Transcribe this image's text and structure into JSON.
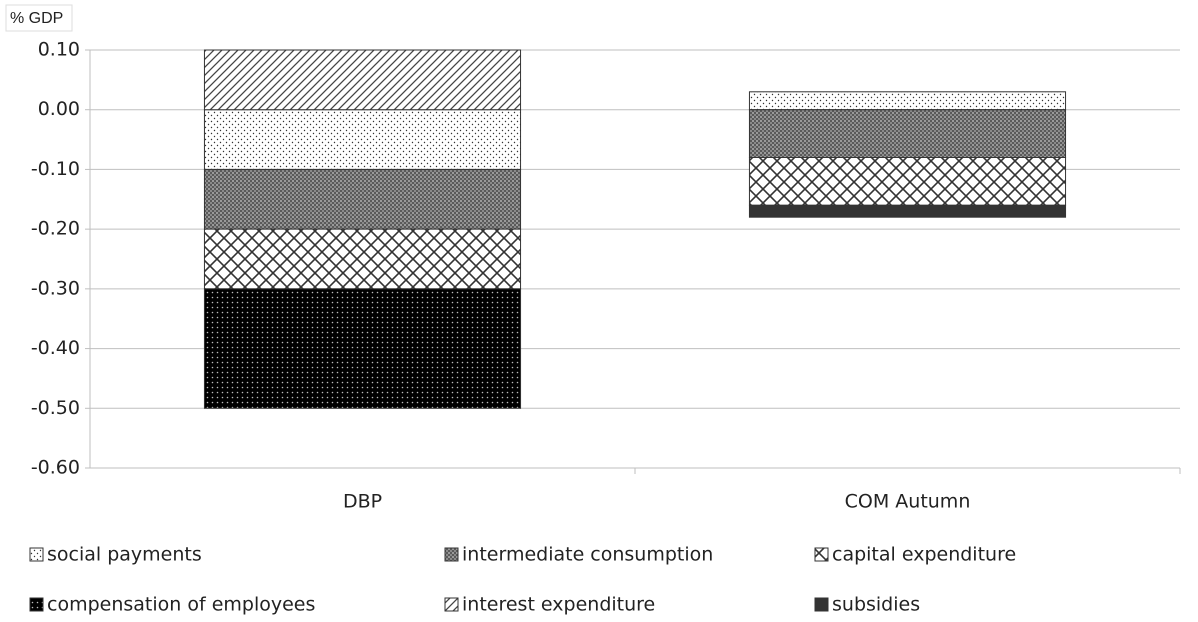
{
  "chart_data": {
    "type": "stacked_bar",
    "y_label": "% GDP",
    "categories": [
      "DBP",
      "COM Autumn"
    ],
    "series": [
      {
        "name": "social payments",
        "color": "#f2f2f2",
        "values": [
          -0.1,
          0.03
        ]
      },
      {
        "name": "intermediate consumption",
        "color": "#777777",
        "values": [
          -0.1,
          -0.08
        ]
      },
      {
        "name": "capital expenditure",
        "color": "#dddddd",
        "values": [
          -0.1,
          -0.08
        ]
      },
      {
        "name": "compensation of employees",
        "color": "#111111",
        "values": [
          -0.2,
          0
        ]
      },
      {
        "name": "interest expenditure",
        "color": "#cccccc",
        "values": [
          0.1,
          0
        ]
      },
      {
        "name": "subsidies",
        "color": "#333333",
        "values": [
          0,
          -0.02
        ]
      }
    ],
    "ylim": [
      -0.6,
      0.1
    ],
    "yticks": [
      {
        "value": 0.1,
        "label": "0.10"
      },
      {
        "value": 0,
        "label": "0.00"
      },
      {
        "value": -0.1,
        "label": "-0.10"
      },
      {
        "value": -0.2,
        "label": "-0.20"
      },
      {
        "value": -0.3,
        "label": "-0.30"
      },
      {
        "value": -0.4,
        "label": "-0.40"
      },
      {
        "value": -0.5,
        "label": "-0.50"
      },
      {
        "value": -0.6,
        "label": "-0.60"
      }
    ],
    "grid": true,
    "legend": "bottom"
  }
}
